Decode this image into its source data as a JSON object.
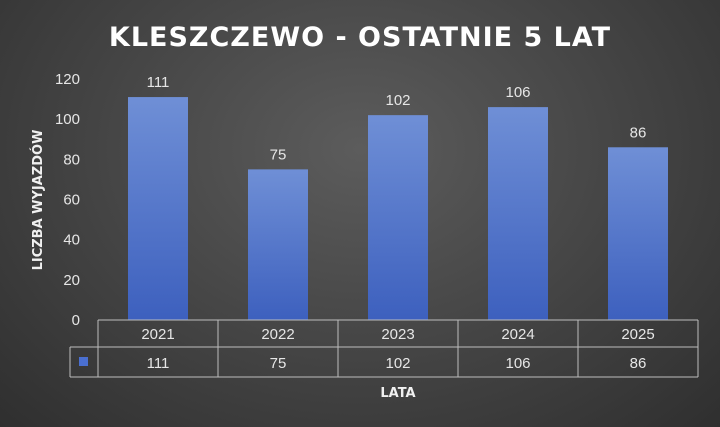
{
  "chart_data": {
    "type": "bar",
    "title": "KLESZCZEWO - OSTATNIE 5 LAT",
    "xlabel": "LATA",
    "ylabel": "LICZBA WYJAZDÓW",
    "categories": [
      "2021",
      "2022",
      "2023",
      "2024",
      "2025"
    ],
    "values": [
      111,
      75,
      102,
      106,
      86
    ],
    "ylim": [
      0,
      120
    ],
    "yticks": [
      "0",
      "20",
      "40",
      "60",
      "80",
      "100",
      "120"
    ],
    "data_labels": [
      "111",
      "75",
      "102",
      "106",
      "86"
    ],
    "data_table": {
      "header": [
        "2021",
        "2022",
        "2023",
        "2024",
        "2025"
      ],
      "row": [
        "111",
        "75",
        "102",
        "106",
        "86"
      ]
    },
    "grid": false,
    "legend": "data-table",
    "colors": {
      "bar_top": "#6f8fd6",
      "bar_bottom": "#3d60be",
      "legend_key": "#4a6fd0"
    }
  }
}
